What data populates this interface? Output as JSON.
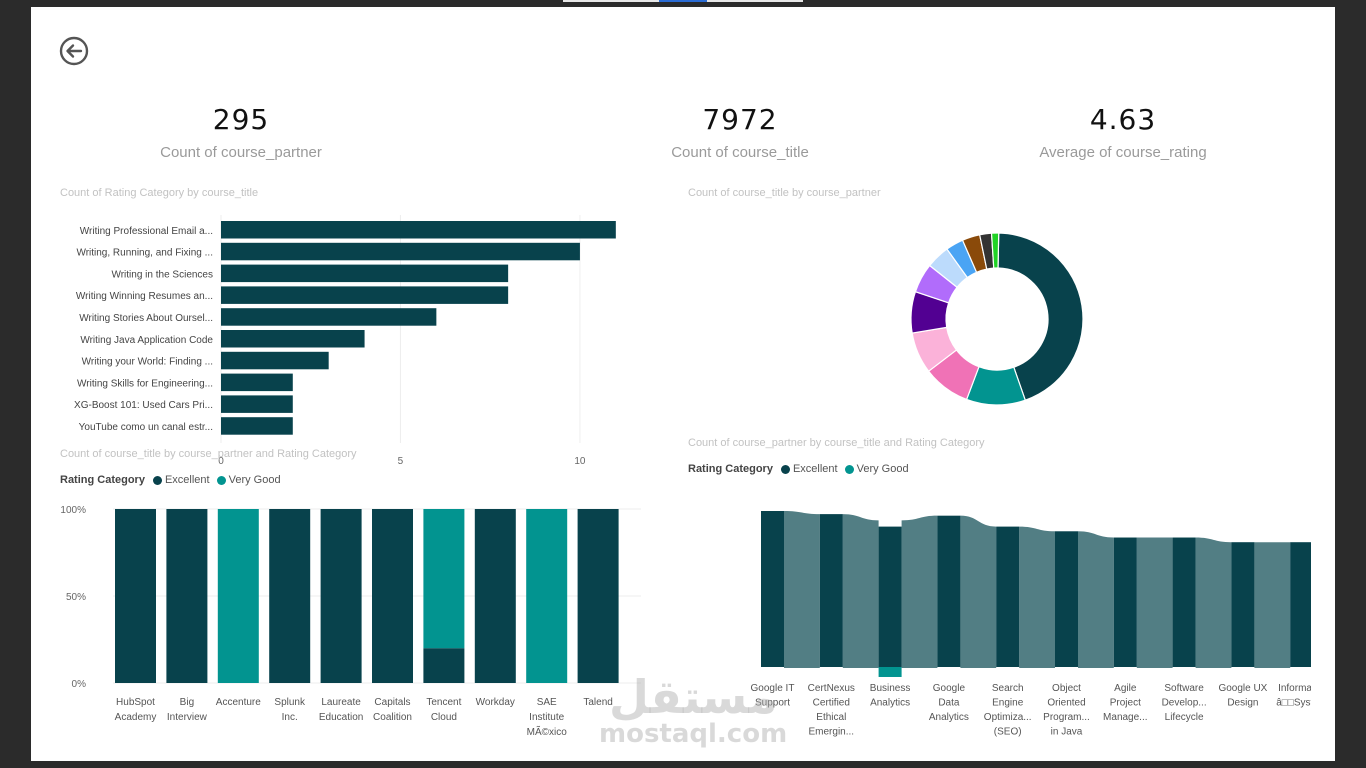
{
  "kpis": [
    {
      "value": "295",
      "label": "Count of course_partner"
    },
    {
      "value": "7972",
      "label": "Count of course_title"
    },
    {
      "value": "4.63",
      "label": "Average of course_rating"
    }
  ],
  "colors": {
    "excellent": "#08424c",
    "very_good": "#029490",
    "sankey_flow": "#527e84"
  },
  "watermark": {
    "arabic": "مستقل",
    "latin": "mostaql.com"
  },
  "chart_data": [
    {
      "id": "bar",
      "type": "bar",
      "orientation": "horizontal",
      "title": "Count of Rating Category by course_title",
      "categories": [
        "Writing Professional Email a...",
        "Writing, Running, and Fixing ...",
        "Writing in the Sciences",
        "Writing Winning Resumes an...",
        "Writing Stories About Oursel...",
        "Writing Java Application Code",
        "Writing your World: Finding ...",
        "Writing Skills for Engineering...",
        "XG-Boost 101: Used Cars Pri...",
        "YouTube como un canal estr..."
      ],
      "values": [
        11,
        10,
        8,
        8,
        6,
        4,
        3,
        2,
        2,
        2
      ],
      "xlim": [
        0,
        11.2
      ],
      "xticks": [
        "0",
        "5",
        "10"
      ]
    },
    {
      "id": "donut",
      "type": "pie",
      "title": "Count of course_title by course_partner",
      "values": [
        40,
        10,
        8,
        7,
        7,
        5,
        4,
        3,
        3,
        2,
        1.2
      ],
      "colors": [
        "#08424c",
        "#029490",
        "#f072b6",
        "#fbb2d9",
        "#520092",
        "#b16cfb",
        "#bcdbfc",
        "#4aa4f4",
        "#8a4a0a",
        "#333333",
        "#21d326"
      ]
    },
    {
      "id": "stacked",
      "type": "bar",
      "stacked": "100%",
      "title": "Count of course_title by course_partner and Rating Category",
      "legend_title": "Rating Category",
      "legend": [
        "Excellent",
        "Very Good"
      ],
      "yticks": [
        "100%",
        "50%",
        "0%"
      ],
      "categories": [
        "HubSpot Academy",
        "Big Interview",
        "Accenture",
        "Splunk Inc.",
        "Laureate Education",
        "Capitals Coalition",
        "Tencent Cloud",
        "Workday",
        "SAE Institute MÃ©xico",
        "Talend"
      ],
      "category_lines": [
        [
          "HubSpot",
          "Academy"
        ],
        [
          "Big",
          "Interview"
        ],
        [
          "Accenture"
        ],
        [
          "Splunk",
          "Inc."
        ],
        [
          "Laureate",
          "Education"
        ],
        [
          "Capitals",
          "Coalition"
        ],
        [
          "Tencent",
          "Cloud"
        ],
        [
          "Workday"
        ],
        [
          "SAE",
          "Institute",
          "MÃ©xico"
        ],
        [
          "Talend"
        ]
      ],
      "series": [
        {
          "name": "Excellent",
          "values": [
            100,
            100,
            0,
            100,
            100,
            100,
            20,
            100,
            0,
            100
          ]
        },
        {
          "name": "Very Good",
          "values": [
            0,
            0,
            100,
            0,
            0,
            0,
            80,
            0,
            100,
            0
          ]
        }
      ]
    },
    {
      "id": "ribbon",
      "type": "bar",
      "variant": "ribbon",
      "stacked": true,
      "title": "Count of course_partner by course_title and Rating Category",
      "legend_title": "Rating Category",
      "legend": [
        "Excellent",
        "Very Good"
      ],
      "categories": [
        "Google IT Support",
        "CertNexus Certified Ethical Emergin...",
        "Business Analytics",
        "Google Data Analytics",
        "Search Engine Optimiza... (SEO)",
        "Object Oriented Program... in Java",
        "Agile Project Manage...",
        "Software Develop... Lifecycle",
        "Google UX Design",
        "Informati... â□□Syste..."
      ],
      "category_lines": [
        [
          "Google IT",
          "Support"
        ],
        [
          "CertNexus",
          "Certified",
          "Ethical",
          "Emergin..."
        ],
        [
          "Business",
          "Analytics"
        ],
        [
          "Google",
          "Data",
          "Analytics"
        ],
        [
          "Search",
          "Engine",
          "Optimiza...",
          "(SEO)"
        ],
        [
          "Object",
          "Oriented",
          "Program...",
          "in Java"
        ],
        [
          "Agile",
          "Project",
          "Manage..."
        ],
        [
          "Software",
          "Develop...",
          "Lifecycle"
        ],
        [
          "Google UX",
          "Design"
        ],
        [
          "Informati...",
          "â□□Syste..."
        ]
      ],
      "ylim": [
        0,
        10
      ],
      "series": [
        {
          "name": "Excellent",
          "values": [
            10,
            9.8,
            9,
            9.7,
            9.0,
            8.7,
            8.3,
            8.3,
            8.0,
            8.0
          ]
        },
        {
          "name": "Very Good",
          "values": [
            0,
            0,
            0.4,
            0,
            0,
            0,
            0,
            0,
            0,
            0
          ]
        }
      ]
    }
  ]
}
